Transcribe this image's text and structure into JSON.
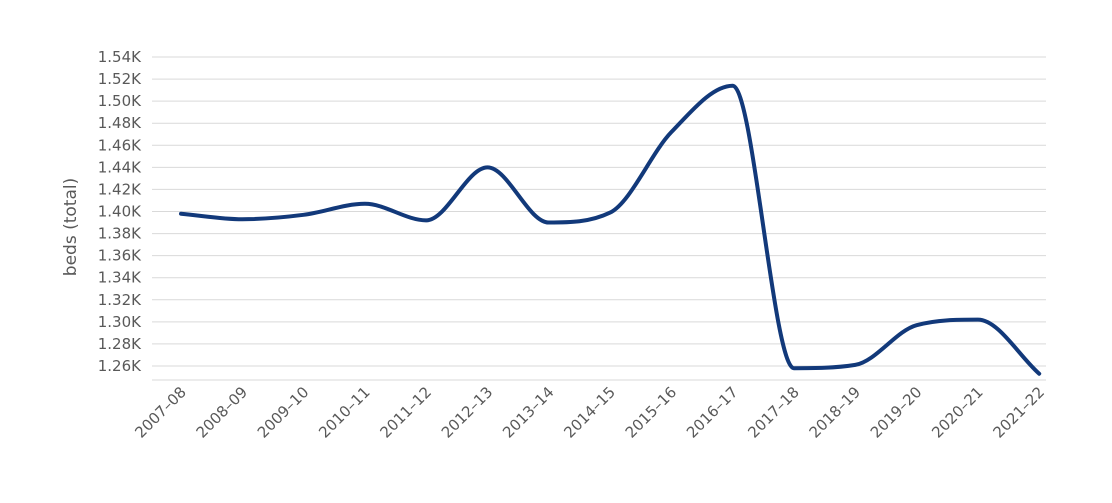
{
  "chart_data": {
    "type": "line",
    "title": "",
    "xlabel": "",
    "ylabel": "beds (total)",
    "categories": [
      "2007–08",
      "2008–09",
      "2009–10",
      "2010–11",
      "2011–12",
      "2012–13",
      "2013–14",
      "2014–15",
      "2015–16",
      "2016–17",
      "2017–18",
      "2018–19",
      "2019–20",
      "2020–21",
      "2021–22"
    ],
    "series": [
      {
        "values": [
          1398,
          1393,
          1397,
          1407,
          1392,
          1440,
          1390,
          1399,
          1472,
          1514,
          1258,
          1261,
          1297,
          1302,
          1253
        ]
      }
    ],
    "ylim": [
      1250,
      1540
    ],
    "yticks": [
      1260,
      1280,
      1300,
      1320,
      1340,
      1360,
      1380,
      1400,
      1420,
      1440,
      1460,
      1480,
      1500,
      1520,
      1540
    ],
    "ytick_labels": [
      "1.26K",
      "1.28K",
      "1.30K",
      "1.32K",
      "1.34K",
      "1.36K",
      "1.38K",
      "1.40K",
      "1.42K",
      "1.44K",
      "1.46K",
      "1.48K",
      "1.50K",
      "1.52K",
      "1.54K"
    ],
    "grid": true,
    "legend": "none",
    "line_color": "#12397a",
    "grid_color": "#d9d9d9"
  }
}
